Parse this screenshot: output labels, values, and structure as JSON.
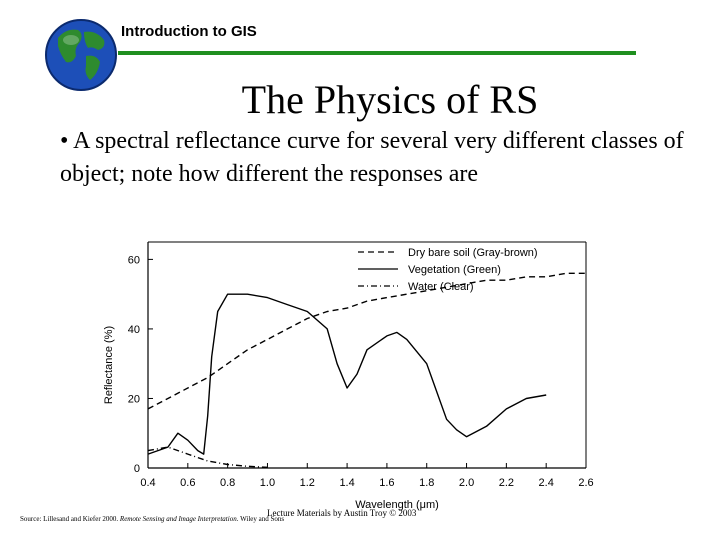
{
  "header": {
    "title": "Introduction to GIS"
  },
  "slide": {
    "title": "The Physics of RS",
    "bullet": "• A spectral reflectance curve for several very different classes of object; note how different the responses are"
  },
  "footer": {
    "credit": "Lecture Materials by Austin Troy © 2003",
    "source_prefix": "Source: Lillesand and Kiefer 2000. ",
    "source_title": "Remote Sensing and Image Interpretation",
    "source_suffix": ". Wiley and Sons"
  },
  "colors": {
    "rule": "#1f8f1f",
    "ocean": "#1d4fb8",
    "land": "#2e8b2e"
  },
  "chart_data": {
    "type": "line",
    "xlabel": "Wavelength (μm)",
    "ylabel": "Reflectance (%)",
    "xlim": [
      0.4,
      2.6
    ],
    "ylim": [
      0,
      65
    ],
    "x_ticks": [
      "0.4",
      "0.6",
      "0.8",
      "1.0",
      "1.2",
      "1.4",
      "1.6",
      "1.8",
      "2.0",
      "2.2",
      "2.4",
      "2.6"
    ],
    "y_ticks": [
      "0",
      "20",
      "40",
      "60"
    ],
    "legend_position": "top-right",
    "series": [
      {
        "name": "Dry bare soil (Gray-brown)",
        "style": "dashed",
        "x": [
          0.4,
          0.5,
          0.6,
          0.7,
          0.8,
          0.9,
          1.0,
          1.1,
          1.2,
          1.3,
          1.4,
          1.5,
          1.6,
          1.7,
          1.8,
          1.9,
          2.0,
          2.1,
          2.2,
          2.3,
          2.4,
          2.5,
          2.6
        ],
        "y": [
          17,
          20,
          23,
          26,
          30,
          34,
          37,
          40,
          43,
          45,
          46,
          48,
          49,
          50,
          51,
          52,
          53,
          54,
          54,
          55,
          55,
          56,
          56
        ]
      },
      {
        "name": "Vegetation (Green)",
        "style": "solid",
        "x": [
          0.4,
          0.5,
          0.55,
          0.6,
          0.65,
          0.68,
          0.7,
          0.72,
          0.75,
          0.8,
          0.9,
          1.0,
          1.1,
          1.2,
          1.3,
          1.35,
          1.4,
          1.45,
          1.5,
          1.6,
          1.65,
          1.7,
          1.8,
          1.9,
          1.95,
          2.0,
          2.1,
          2.2,
          2.3,
          2.4
        ],
        "y": [
          4,
          6,
          10,
          8,
          5,
          4,
          15,
          32,
          45,
          50,
          50,
          49,
          47,
          45,
          40,
          30,
          23,
          27,
          34,
          38,
          39,
          37,
          30,
          14,
          11,
          9,
          12,
          17,
          20,
          21
        ]
      },
      {
        "name": "Water (Clear)",
        "style": "dash-dot",
        "x": [
          0.4,
          0.5,
          0.6,
          0.7,
          0.8,
          0.9,
          1.0
        ],
        "y": [
          5,
          6,
          4,
          2,
          1,
          0.5,
          0.2
        ]
      }
    ]
  }
}
